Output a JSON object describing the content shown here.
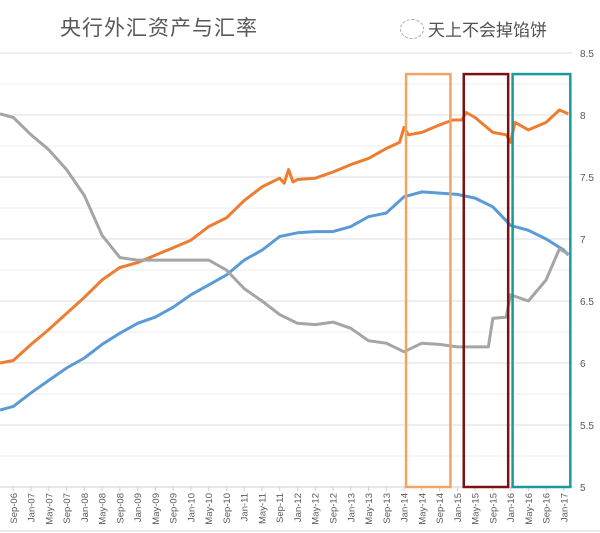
{
  "chart_data": {
    "type": "line",
    "title": "央行外汇资产与汇率",
    "xlabel": "",
    "ylabel": "",
    "y_right_ticks": [
      "5",
      "5.5",
      "6",
      "6.5",
      "7",
      "7.5",
      "8",
      "8.5"
    ],
    "ylim": [
      5,
      8.5
    ],
    "grid": true,
    "legend": "none",
    "x_tick_labels": [
      "Sep-06",
      "Jan-07",
      "May-07",
      "Sep-07",
      "Jan-08",
      "May-08",
      "Sep-08",
      "Jan-09",
      "May-09",
      "Sep-09",
      "Jan-10",
      "May-10",
      "Sep-10",
      "Jan-11",
      "May-11",
      "Sep-11",
      "Jan-12",
      "May-12",
      "Sep-12",
      "Jan-13",
      "May-13",
      "Sep-13",
      "Jan-14",
      "May-14",
      "Sep-14",
      "Jan-15",
      "May-15",
      "Sep-15",
      "Jan-16",
      "May-16",
      "Sep-16",
      "Jan-17"
    ],
    "series": [
      {
        "name": "orange-series",
        "color": "#ED7D31",
        "points": [
          [
            "Jun-06",
            6.0
          ],
          [
            "Sep-06",
            6.02
          ],
          [
            "Jan-07",
            6.15
          ],
          [
            "May-07",
            6.27
          ],
          [
            "Sep-07",
            6.4
          ],
          [
            "Jan-08",
            6.53
          ],
          [
            "May-08",
            6.67
          ],
          [
            "Sep-08",
            6.77
          ],
          [
            "Jan-09",
            6.81
          ],
          [
            "May-09",
            6.87
          ],
          [
            "Sep-09",
            6.93
          ],
          [
            "Jan-10",
            6.99
          ],
          [
            "May-10",
            7.1
          ],
          [
            "Sep-10",
            7.17
          ],
          [
            "Jan-11",
            7.31
          ],
          [
            "May-11",
            7.42
          ],
          [
            "Sep-11",
            7.49
          ],
          [
            "Oct-11",
            7.45
          ],
          [
            "Nov-11",
            7.56
          ],
          [
            "Dec-11",
            7.46
          ],
          [
            "Jan-12",
            7.48
          ],
          [
            "May-12",
            7.49
          ],
          [
            "Sep-12",
            7.54
          ],
          [
            "Jan-13",
            7.6
          ],
          [
            "May-13",
            7.65
          ],
          [
            "Sep-13",
            7.73
          ],
          [
            "Dec-13",
            7.78
          ],
          [
            "Jan-14",
            7.9
          ],
          [
            "Feb-14",
            7.84
          ],
          [
            "May-14",
            7.86
          ],
          [
            "Sep-14",
            7.92
          ],
          [
            "Dec-14",
            7.96
          ],
          [
            "Feb-15",
            7.96
          ],
          [
            "Mar-15",
            8.02
          ],
          [
            "May-15",
            7.98
          ],
          [
            "Sep-15",
            7.86
          ],
          [
            "Dec-15",
            7.84
          ],
          [
            "Jan-16",
            7.78
          ],
          [
            "Feb-16",
            7.94
          ],
          [
            "May-16",
            7.88
          ],
          [
            "Sep-16",
            7.94
          ],
          [
            "Dec-16",
            8.04
          ],
          [
            "Feb-17",
            8.01
          ]
        ]
      },
      {
        "name": "blue-series",
        "color": "#5B9BD5",
        "points": [
          [
            "Jun-06",
            5.62
          ],
          [
            "Sep-06",
            5.65
          ],
          [
            "Jan-07",
            5.76
          ],
          [
            "May-07",
            5.86
          ],
          [
            "Sep-07",
            5.96
          ],
          [
            "Jan-08",
            6.04
          ],
          [
            "May-08",
            6.15
          ],
          [
            "Sep-08",
            6.24
          ],
          [
            "Jan-09",
            6.32
          ],
          [
            "May-09",
            6.37
          ],
          [
            "Sep-09",
            6.45
          ],
          [
            "Jan-10",
            6.55
          ],
          [
            "May-10",
            6.63
          ],
          [
            "Sep-10",
            6.71
          ],
          [
            "Jan-11",
            6.83
          ],
          [
            "May-11",
            6.91
          ],
          [
            "Sep-11",
            7.02
          ],
          [
            "Jan-12",
            7.05
          ],
          [
            "May-12",
            7.06
          ],
          [
            "Sep-12",
            7.06
          ],
          [
            "Jan-13",
            7.1
          ],
          [
            "May-13",
            7.18
          ],
          [
            "Sep-13",
            7.21
          ],
          [
            "Jan-14",
            7.34
          ],
          [
            "May-14",
            7.38
          ],
          [
            "Sep-14",
            7.37
          ],
          [
            "Jan-15",
            7.36
          ],
          [
            "May-15",
            7.33
          ],
          [
            "Sep-15",
            7.26
          ],
          [
            "Jan-16",
            7.11
          ],
          [
            "May-16",
            7.07
          ],
          [
            "Sep-16",
            7.0
          ],
          [
            "Jan-17",
            6.91
          ],
          [
            "Feb-17",
            6.87
          ]
        ]
      },
      {
        "name": "exchange-rate-series",
        "color": "#A5A5A5",
        "points": [
          [
            "Jun-06",
            8.01
          ],
          [
            "Sep-06",
            7.98
          ],
          [
            "Jan-07",
            7.84
          ],
          [
            "May-07",
            7.72
          ],
          [
            "Sep-07",
            7.56
          ],
          [
            "Jan-08",
            7.35
          ],
          [
            "May-08",
            7.03
          ],
          [
            "Sep-08",
            6.85
          ],
          [
            "Jan-09",
            6.83
          ],
          [
            "May-09",
            6.83
          ],
          [
            "Sep-09",
            6.83
          ],
          [
            "Jan-10",
            6.83
          ],
          [
            "May-10",
            6.83
          ],
          [
            "Sep-10",
            6.75
          ],
          [
            "Jan-11",
            6.6
          ],
          [
            "May-11",
            6.5
          ],
          [
            "Sep-11",
            6.39
          ],
          [
            "Jan-12",
            6.32
          ],
          [
            "May-12",
            6.31
          ],
          [
            "Sep-12",
            6.33
          ],
          [
            "Jan-13",
            6.28
          ],
          [
            "May-13",
            6.18
          ],
          [
            "Sep-13",
            6.16
          ],
          [
            "Jan-14",
            6.09
          ],
          [
            "May-14",
            6.16
          ],
          [
            "Sep-14",
            6.15
          ],
          [
            "Jan-15",
            6.13
          ],
          [
            "May-15",
            6.13
          ],
          [
            "Aug-15",
            6.13
          ],
          [
            "Sep-15",
            6.36
          ],
          [
            "Dec-15",
            6.37
          ],
          [
            "Jan-16",
            6.55
          ],
          [
            "May-16",
            6.5
          ],
          [
            "Sep-16",
            6.67
          ],
          [
            "Dec-16",
            6.92
          ],
          [
            "Feb-17",
            6.88
          ]
        ]
      }
    ],
    "annotations": [
      {
        "name": "highlight-box-2014",
        "color": "#F4A460",
        "from": "Jan-14",
        "to": "Nov-14",
        "y_top": 8.33
      },
      {
        "name": "highlight-box-2015",
        "color": "#7B1113",
        "from": "Feb-15",
        "to": "Dec-15",
        "y_top": 8.33
      },
      {
        "name": "highlight-box-2016",
        "color": "#1A9A9A",
        "from": "Jan-16",
        "to": "Feb-17",
        "y_top": 8.33
      }
    ]
  },
  "watermark": "天上不会掉馅饼"
}
